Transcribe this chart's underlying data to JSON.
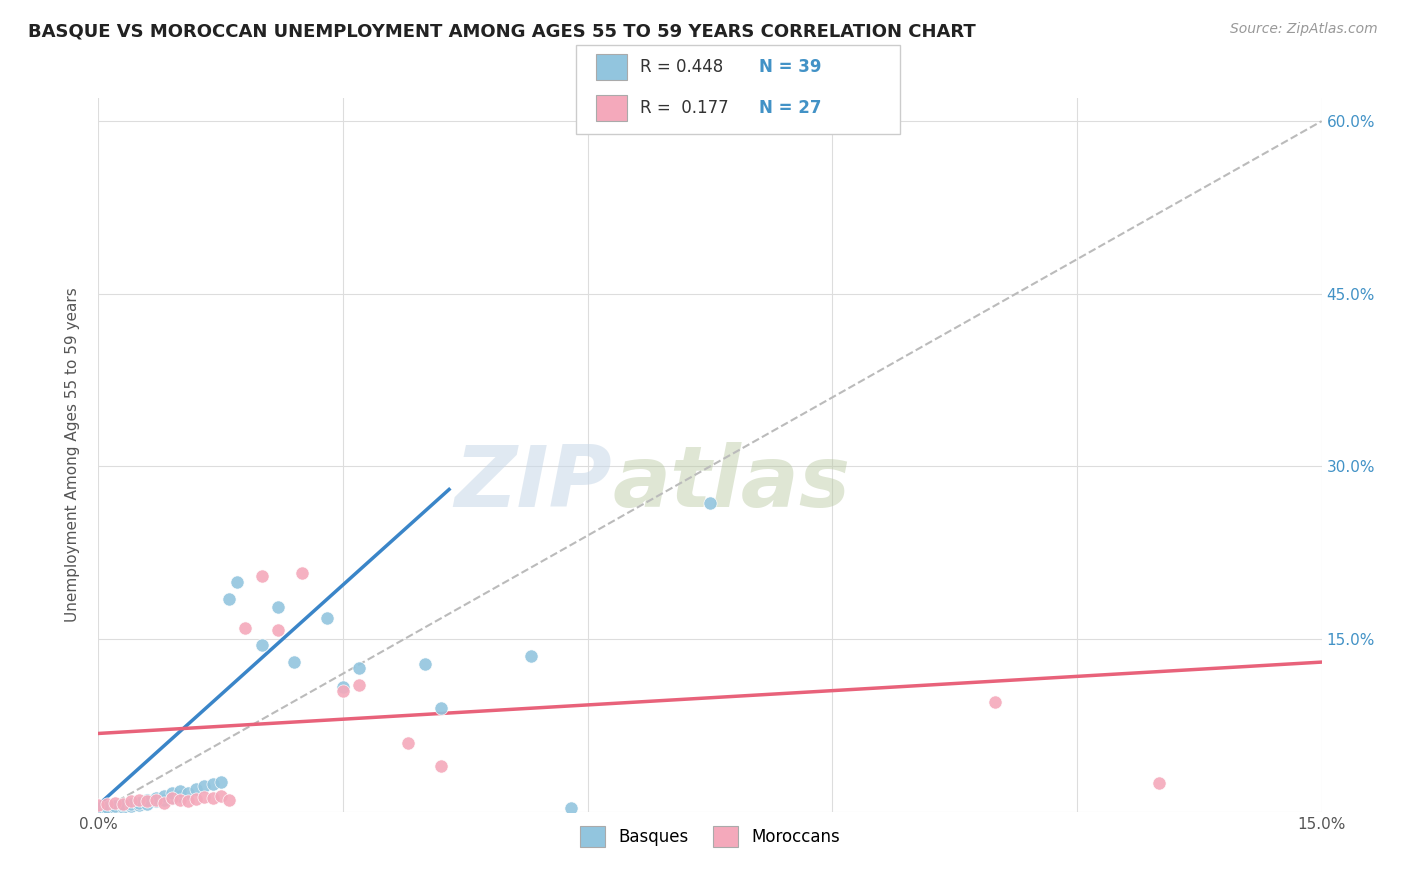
{
  "title": "BASQUE VS MOROCCAN UNEMPLOYMENT AMONG AGES 55 TO 59 YEARS CORRELATION CHART",
  "source": "Source: ZipAtlas.com",
  "ylabel": "Unemployment Among Ages 55 to 59 years",
  "xmin": 0.0,
  "xmax": 0.15,
  "ymin": 0.0,
  "ymax": 0.62,
  "xticks": [
    0.0,
    0.03,
    0.06,
    0.09,
    0.12,
    0.15
  ],
  "yticks": [
    0.0,
    0.15,
    0.3,
    0.45,
    0.6
  ],
  "ytick_right_labels": [
    "",
    "15.0%",
    "30.0%",
    "45.0%",
    "60.0%"
  ],
  "xtick_labels": [
    "0.0%",
    "",
    "",
    "",
    "",
    "15.0%"
  ],
  "basque_color": "#92c5de",
  "moroccan_color": "#f4a9bb",
  "basque_line_color": "#3a85c8",
  "moroccan_line_color": "#e8627a",
  "basque_R": 0.448,
  "basque_N": 39,
  "moroccan_R": 0.177,
  "moroccan_N": 27,
  "watermark_zip": "ZIP",
  "watermark_atlas": "atlas",
  "legend_labels": [
    "Basques",
    "Moroccans"
  ],
  "basque_scatter_x": [
    0.0,
    0.001,
    0.001,
    0.002,
    0.002,
    0.003,
    0.003,
    0.004,
    0.004,
    0.005,
    0.005,
    0.006,
    0.006,
    0.007,
    0.007,
    0.008,
    0.008,
    0.009,
    0.009,
    0.01,
    0.01,
    0.011,
    0.012,
    0.013,
    0.014,
    0.015,
    0.016,
    0.017,
    0.02,
    0.022,
    0.024,
    0.028,
    0.03,
    0.032,
    0.04,
    0.042,
    0.053,
    0.058,
    0.075
  ],
  "basque_scatter_y": [
    0.003,
    0.002,
    0.004,
    0.003,
    0.005,
    0.004,
    0.006,
    0.005,
    0.007,
    0.006,
    0.008,
    0.007,
    0.01,
    0.009,
    0.012,
    0.01,
    0.014,
    0.012,
    0.016,
    0.014,
    0.018,
    0.016,
    0.02,
    0.022,
    0.024,
    0.026,
    0.185,
    0.2,
    0.145,
    0.178,
    0.13,
    0.168,
    0.108,
    0.125,
    0.128,
    0.09,
    0.135,
    0.003,
    0.268
  ],
  "moroccan_scatter_x": [
    0.0,
    0.001,
    0.002,
    0.003,
    0.004,
    0.005,
    0.006,
    0.007,
    0.008,
    0.009,
    0.01,
    0.011,
    0.012,
    0.013,
    0.014,
    0.015,
    0.016,
    0.018,
    0.02,
    0.022,
    0.025,
    0.03,
    0.032,
    0.038,
    0.042,
    0.11,
    0.13
  ],
  "moroccan_scatter_y": [
    0.006,
    0.007,
    0.008,
    0.007,
    0.009,
    0.01,
    0.009,
    0.01,
    0.008,
    0.012,
    0.01,
    0.009,
    0.011,
    0.013,
    0.012,
    0.014,
    0.01,
    0.16,
    0.205,
    0.158,
    0.207,
    0.105,
    0.11,
    0.06,
    0.04,
    0.095,
    0.025
  ],
  "basque_line_x0": 0.0,
  "basque_line_x1": 0.043,
  "basque_line_y0": 0.006,
  "basque_line_y1": 0.28,
  "moroccan_line_x0": 0.0,
  "moroccan_line_x1": 0.15,
  "moroccan_line_y0": 0.068,
  "moroccan_line_y1": 0.13,
  "dashed_slope": 4.0,
  "dashed_intercept": 0.0
}
